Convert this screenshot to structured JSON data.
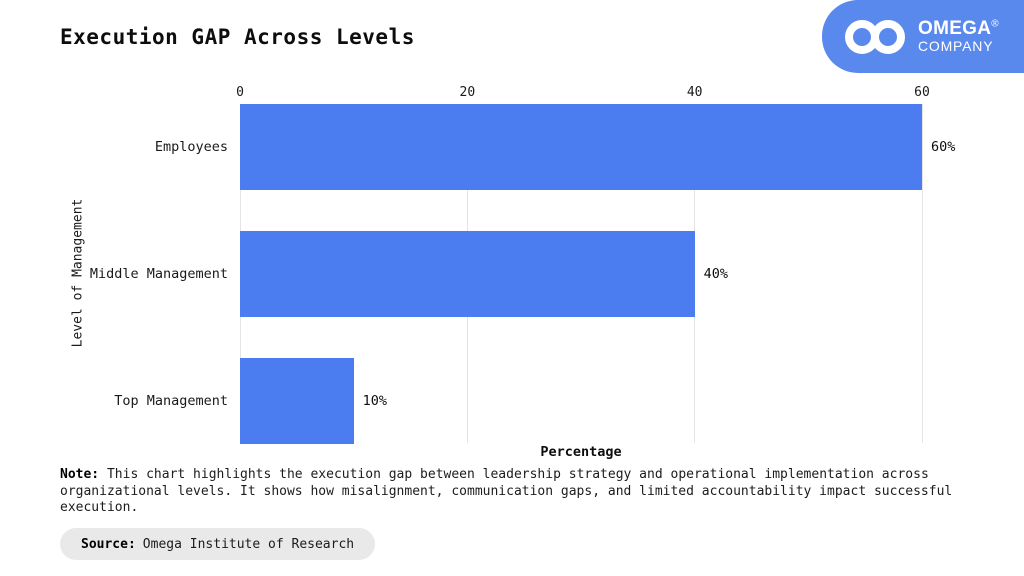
{
  "header": {
    "title": "Execution GAP Across Levels",
    "logo": {
      "brand_top": "OMEGA",
      "registered_mark": "®",
      "brand_bottom": "COMPANY",
      "bg_color": "#5a89ee",
      "icon": "infinity-icon"
    }
  },
  "chart_data": {
    "type": "bar",
    "orientation": "horizontal",
    "title": "Execution GAP Across Levels",
    "categories": [
      "Employees",
      "Middle Management",
      "Top Management"
    ],
    "values": [
      60,
      40,
      10
    ],
    "value_labels": [
      "60%",
      "40%",
      "10%"
    ],
    "xlabel": "Percentage",
    "ylabel": "Level of Management",
    "x_ticks": [
      0,
      20,
      40,
      60
    ],
    "xlim": [
      0,
      60
    ],
    "bar_color": "#4b7df0",
    "gridline_color": "#e4e4e4",
    "grid": true,
    "legend": false
  },
  "note": {
    "label": "Note:",
    "text": "This chart highlights the execution gap between leadership strategy and operational implementation across organizational levels. It shows how misalignment, communication gaps, and limited accountability impact successful execution."
  },
  "source": {
    "label": "Source:",
    "text": "Omega Institute of Research"
  }
}
